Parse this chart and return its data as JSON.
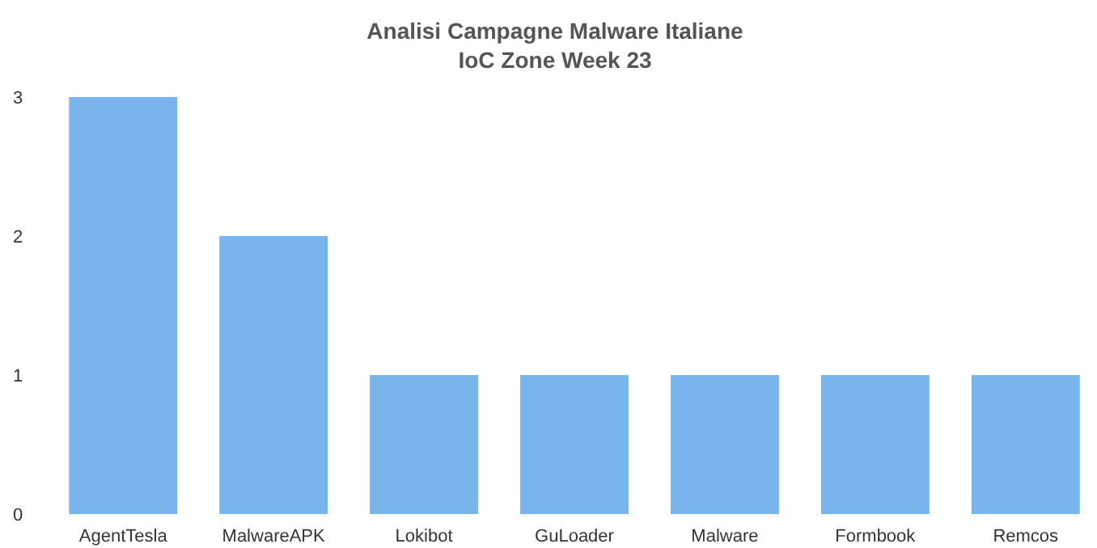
{
  "chart_data": {
    "type": "bar",
    "title": "Analisi Campagne Malware Italiane",
    "subtitle": "IoC Zone Week 23",
    "categories": [
      "AgentTesla",
      "MalwareAPK",
      "Lokibot",
      "GuLoader",
      "Malware",
      "Formbook",
      "Remcos"
    ],
    "values": [
      3,
      2,
      1,
      1,
      1,
      1,
      1
    ],
    "color": "#7ab4ec",
    "ylim": [
      0,
      3
    ],
    "yticks": [
      0,
      1,
      2,
      3
    ]
  }
}
